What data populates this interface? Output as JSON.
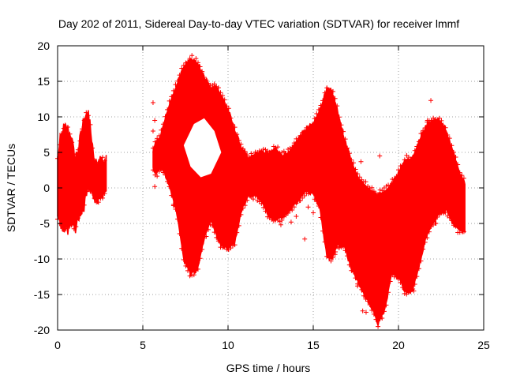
{
  "chart_data": {
    "type": "scatter",
    "title": "Day 202 of 2011, Sidereal Day-to-day VTEC variation (SDTVAR) for receiver lmmf",
    "xlabel": "GPS time / hours",
    "ylabel": "SDTVAR / TECUs",
    "xlim": [
      0,
      25
    ],
    "ylim": [
      -20,
      20
    ],
    "xticks": [
      0,
      5,
      10,
      15,
      20,
      25
    ],
    "yticks": [
      -20,
      -15,
      -10,
      -5,
      0,
      5,
      10,
      15,
      20
    ],
    "grid": true,
    "marker": "+",
    "colors": {
      "series": "#ff0000",
      "axes": "#000000",
      "grid": "#a0a0a0"
    },
    "series": [
      {
        "name": "SDTVAR",
        "envelope_upper": [
          [
            0.0,
            4
          ],
          [
            0.2,
            7
          ],
          [
            0.4,
            8.3
          ],
          [
            0.6,
            8
          ],
          [
            0.8,
            7
          ],
          [
            1.0,
            4
          ],
          [
            1.2,
            5
          ],
          [
            1.5,
            9
          ],
          [
            1.7,
            10.5
          ],
          [
            1.9,
            9
          ],
          [
            2.1,
            4
          ],
          [
            2.3,
            3
          ],
          [
            2.5,
            4
          ],
          [
            2.8,
            3.5
          ],
          [
            5.6,
            5
          ],
          [
            5.8,
            6.5
          ],
          [
            6.0,
            7
          ],
          [
            6.3,
            9.5
          ],
          [
            6.6,
            12
          ],
          [
            7.0,
            14.5
          ],
          [
            7.4,
            17
          ],
          [
            7.8,
            18.2
          ],
          [
            8.2,
            17.5
          ],
          [
            8.6,
            15.5
          ],
          [
            9.0,
            14
          ],
          [
            9.3,
            14.3
          ],
          [
            9.6,
            13
          ],
          [
            10.0,
            11
          ],
          [
            10.4,
            8
          ],
          [
            10.8,
            5.5
          ],
          [
            11.2,
            4
          ],
          [
            11.6,
            4.7
          ],
          [
            12.0,
            5
          ],
          [
            12.4,
            4.8
          ],
          [
            12.8,
            5.5
          ],
          [
            13.2,
            4.5
          ],
          [
            13.6,
            5
          ],
          [
            14.0,
            6.5
          ],
          [
            14.5,
            8
          ],
          [
            15.0,
            9
          ],
          [
            15.4,
            11
          ],
          [
            15.8,
            13.8
          ],
          [
            16.1,
            13.5
          ],
          [
            16.4,
            11
          ],
          [
            16.8,
            7
          ],
          [
            17.2,
            4
          ],
          [
            17.6,
            1.5
          ],
          [
            18.0,
            0.5
          ],
          [
            18.4,
            -0.5
          ],
          [
            18.8,
            -1
          ],
          [
            19.2,
            -0.5
          ],
          [
            19.6,
            0.5
          ],
          [
            20.0,
            2
          ],
          [
            20.4,
            4
          ],
          [
            20.8,
            4
          ],
          [
            21.2,
            6.5
          ],
          [
            21.6,
            8.5
          ],
          [
            22.0,
            9.5
          ],
          [
            22.4,
            9.5
          ],
          [
            22.8,
            8
          ],
          [
            23.2,
            5
          ],
          [
            23.6,
            2
          ],
          [
            23.9,
            0.5
          ]
        ],
        "envelope_lower": [
          [
            0.0,
            -4
          ],
          [
            0.2,
            -5
          ],
          [
            0.4,
            -5.5
          ],
          [
            0.6,
            -5.5
          ],
          [
            0.8,
            -4.5
          ],
          [
            1.0,
            -5.5
          ],
          [
            1.2,
            -4
          ],
          [
            1.5,
            -3
          ],
          [
            1.7,
            0
          ],
          [
            1.9,
            0
          ],
          [
            2.1,
            -1
          ],
          [
            2.3,
            -1.5
          ],
          [
            2.5,
            -1.5
          ],
          [
            2.8,
            -0.5
          ],
          [
            5.6,
            3
          ],
          [
            5.8,
            2
          ],
          [
            6.0,
            3
          ],
          [
            6.3,
            2
          ],
          [
            6.6,
            0
          ],
          [
            7.0,
            -3.5
          ],
          [
            7.4,
            -10
          ],
          [
            7.8,
            -12
          ],
          [
            8.2,
            -11.5
          ],
          [
            8.6,
            -7
          ],
          [
            9.0,
            -4.5
          ],
          [
            9.3,
            -6.5
          ],
          [
            9.6,
            -8
          ],
          [
            10.0,
            -8.5
          ],
          [
            10.4,
            -7.5
          ],
          [
            10.8,
            -3
          ],
          [
            11.2,
            -1
          ],
          [
            11.6,
            -1
          ],
          [
            12.0,
            -2
          ],
          [
            12.4,
            -4
          ],
          [
            12.8,
            -4.5
          ],
          [
            13.2,
            -4
          ],
          [
            13.6,
            -3
          ],
          [
            14.0,
            -2
          ],
          [
            14.5,
            -0.5
          ],
          [
            15.0,
            -0.5
          ],
          [
            15.4,
            -3
          ],
          [
            15.8,
            -9.5
          ],
          [
            16.1,
            -10
          ],
          [
            16.4,
            -8
          ],
          [
            16.8,
            -8
          ],
          [
            17.2,
            -11
          ],
          [
            17.6,
            -13
          ],
          [
            18.0,
            -15
          ],
          [
            18.4,
            -16.5
          ],
          [
            18.8,
            -19
          ],
          [
            19.2,
            -17
          ],
          [
            19.6,
            -12
          ],
          [
            20.0,
            -12.5
          ],
          [
            20.4,
            -14.5
          ],
          [
            20.8,
            -14.5
          ],
          [
            21.2,
            -11
          ],
          [
            21.6,
            -7
          ],
          [
            22.0,
            -5
          ],
          [
            22.4,
            -3.5
          ],
          [
            22.8,
            -3
          ],
          [
            23.2,
            -5
          ],
          [
            23.6,
            -6
          ],
          [
            23.9,
            -6
          ]
        ],
        "outliers": [
          [
            5.6,
            12
          ],
          [
            5.7,
            9.5
          ],
          [
            5.6,
            8
          ],
          [
            5.7,
            0.2
          ],
          [
            6.8,
            -2.5
          ],
          [
            16.0,
            -7.5
          ],
          [
            16.9,
            -5.5
          ],
          [
            17.6,
            -13.8
          ],
          [
            17.8,
            3.7
          ],
          [
            17.9,
            -17.3
          ],
          [
            18.1,
            -17.5
          ],
          [
            18.9,
            4.5
          ],
          [
            19.0,
            -2
          ],
          [
            21.6,
            -2.2
          ],
          [
            21.7,
            9.5
          ],
          [
            21.9,
            12.3
          ],
          [
            22.2,
            -5
          ],
          [
            23.4,
            -3.5
          ],
          [
            14.2,
            -1.8
          ],
          [
            14.5,
            -7.2
          ],
          [
            14.7,
            -2.7
          ],
          [
            13.1,
            -5.2
          ],
          [
            12.7,
            -3.2
          ],
          [
            13.5,
            1.5
          ],
          [
            13.7,
            -4.8
          ],
          [
            12.8,
            -2.2
          ],
          [
            16.3,
            -9
          ],
          [
            16.5,
            -8.3
          ],
          [
            17.0,
            0.5
          ],
          [
            20.5,
            -2
          ],
          [
            20.9,
            -14.5
          ],
          [
            15.0,
            -3.5
          ],
          [
            13.0,
            -0.5
          ],
          [
            14.0,
            -4
          ]
        ]
      }
    ]
  }
}
